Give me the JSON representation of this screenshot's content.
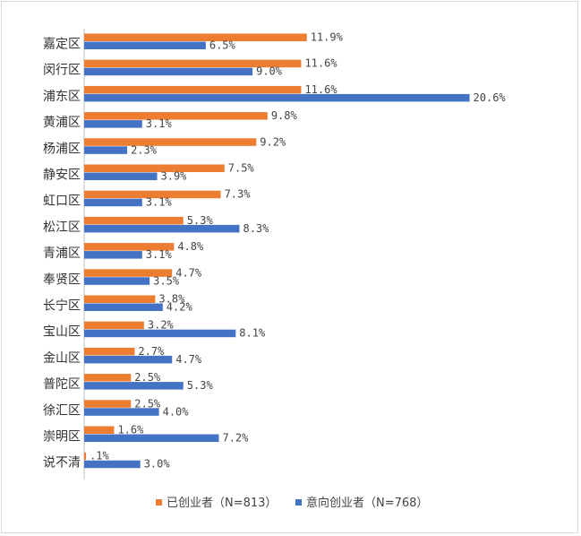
{
  "chart_data": {
    "type": "bar",
    "orientation": "horizontal",
    "categories": [
      "嘉定区",
      "闵行区",
      "浦东区",
      "黄浦区",
      "杨浦区",
      "静安区",
      "虹口区",
      "松江区",
      "青浦区",
      "奉贤区",
      "长宁区",
      "宝山区",
      "金山区",
      "普陀区",
      "徐汇区",
      "崇明区",
      "说不清"
    ],
    "series": [
      {
        "name": "已创业者（N=813）",
        "color": "#ED7D31",
        "values": [
          11.9,
          11.6,
          11.6,
          9.8,
          9.2,
          7.5,
          7.3,
          5.3,
          4.8,
          4.7,
          3.8,
          3.2,
          2.7,
          2.5,
          2.5,
          1.6,
          0.1
        ],
        "labels": [
          "11.9%",
          "11.6%",
          "11.6%",
          "9.8%",
          "9.2%",
          "7.5%",
          "7.3%",
          "5.3%",
          "4.8%",
          "4.7%",
          "3.8%",
          "3.2%",
          "2.7%",
          "2.5%",
          "2.5%",
          "1.6%",
          ".1%"
        ]
      },
      {
        "name": "意向创业者（N=768）",
        "color": "#4472C4",
        "values": [
          6.5,
          9.0,
          20.6,
          3.1,
          2.3,
          3.9,
          3.1,
          8.3,
          3.1,
          3.5,
          4.2,
          8.1,
          4.7,
          5.3,
          4.0,
          7.2,
          3.0
        ],
        "labels": [
          "6.5%",
          "9.0%",
          "20.6%",
          "3.1%",
          "2.3%",
          "3.9%",
          "3.1%",
          "8.3%",
          "3.1%",
          "3.5%",
          "4.2%",
          "8.1%",
          "4.7%",
          "5.3%",
          "4.0%",
          "7.2%",
          "3.0%"
        ]
      }
    ],
    "legend_position": "bottom",
    "grid": false
  }
}
